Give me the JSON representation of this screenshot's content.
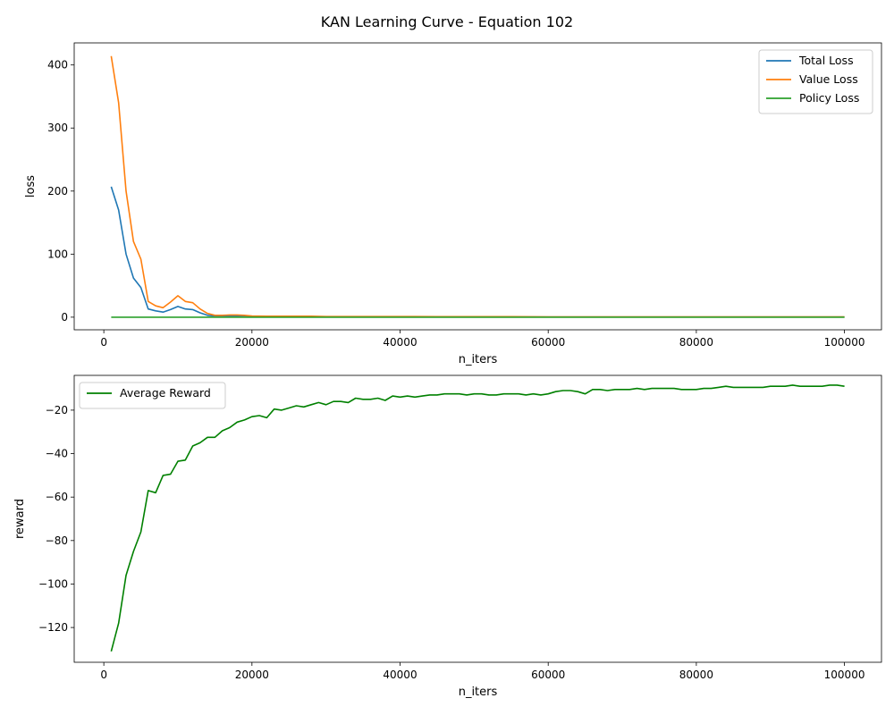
{
  "figure": {
    "title": "KAN Learning Curve - Equation 102"
  },
  "chart_data": [
    {
      "type": "line",
      "xlabel": "n_iters",
      "ylabel": "loss",
      "xlim": [
        -4000,
        105000
      ],
      "ylim": [
        -20,
        435
      ],
      "xticks": [
        0,
        20000,
        40000,
        60000,
        80000,
        100000
      ],
      "yticks": [
        0,
        100,
        200,
        300,
        400
      ],
      "legend": "top-right",
      "series": [
        {
          "name": "Total Loss",
          "color": "#1f77b4",
          "x": [
            1000,
            2000,
            3000,
            4000,
            5000,
            6000,
            7000,
            8000,
            9000,
            10000,
            11000,
            12000,
            13000,
            14000,
            15000,
            16000,
            17000,
            18000,
            19000,
            20000,
            22000,
            25000,
            28000,
            30000,
            35000,
            40000,
            42000,
            45000,
            50000,
            55000,
            60000,
            65000,
            70000,
            75000,
            80000,
            85000,
            90000,
            95000,
            100000
          ],
          "y": [
            207,
            170,
            100,
            62,
            47,
            13,
            10,
            8,
            12,
            17,
            13,
            12,
            7,
            3,
            2,
            2,
            2,
            2,
            2,
            1.5,
            1,
            1,
            1,
            0.5,
            0.5,
            0.5,
            0.5,
            0.5,
            0.5,
            0.5,
            0.3,
            0.3,
            0.3,
            0.3,
            0.3,
            0.3,
            0.3,
            0.3,
            0.3
          ]
        },
        {
          "name": "Value Loss",
          "color": "#ff7f0e",
          "x": [
            1000,
            2000,
            3000,
            4000,
            5000,
            6000,
            7000,
            8000,
            9000,
            10000,
            11000,
            12000,
            13000,
            14000,
            15000,
            16000,
            17000,
            18000,
            19000,
            20000,
            22000,
            25000,
            28000,
            30000,
            35000,
            40000,
            42000,
            45000,
            50000,
            55000,
            60000,
            65000,
            70000,
            75000,
            80000,
            85000,
            90000,
            95000,
            100000
          ],
          "y": [
            414,
            340,
            200,
            120,
            92,
            25,
            18,
            15,
            24,
            34,
            25,
            23,
            13,
            6,
            3,
            3,
            3.5,
            3.5,
            3,
            2,
            1.5,
            1.5,
            1.5,
            1,
            1,
            1,
            1,
            0.8,
            0.8,
            0.8,
            0.6,
            0.6,
            0.6,
            0.6,
            0.6,
            0.6,
            0.6,
            0.6,
            0.6
          ]
        },
        {
          "name": "Policy Loss",
          "color": "#2ca02c",
          "x": [
            1000,
            100000
          ],
          "y": [
            0,
            0
          ]
        }
      ]
    },
    {
      "type": "line",
      "xlabel": "n_iters",
      "ylabel": "reward",
      "xlim": [
        -4000,
        105000
      ],
      "ylim": [
        -136,
        -4
      ],
      "xticks": [
        0,
        20000,
        40000,
        60000,
        80000,
        100000
      ],
      "yticks": [
        -120,
        -100,
        -80,
        -60,
        -40,
        -20
      ],
      "legend": "top-left",
      "series": [
        {
          "name": "Average Reward",
          "color": "#008000",
          "x": [
            1000,
            2000,
            3000,
            4000,
            5000,
            6000,
            7000,
            8000,
            9000,
            10000,
            11000,
            12000,
            13000,
            14000,
            15000,
            16000,
            17000,
            18000,
            19000,
            20000,
            21000,
            22000,
            23000,
            24000,
            25000,
            26000,
            27000,
            28000,
            29000,
            30000,
            31000,
            32000,
            33000,
            34000,
            35000,
            36000,
            37000,
            38000,
            39000,
            40000,
            41000,
            42000,
            43000,
            44000,
            45000,
            46000,
            47000,
            48000,
            49000,
            50000,
            51000,
            52000,
            53000,
            54000,
            55000,
            56000,
            57000,
            58000,
            59000,
            60000,
            61000,
            62000,
            63000,
            64000,
            65000,
            66000,
            67000,
            68000,
            69000,
            70000,
            71000,
            72000,
            73000,
            74000,
            75000,
            76000,
            77000,
            78000,
            79000,
            80000,
            81000,
            82000,
            83000,
            84000,
            85000,
            86000,
            87000,
            88000,
            89000,
            90000,
            91000,
            92000,
            93000,
            94000,
            95000,
            96000,
            97000,
            98000,
            99000,
            100000
          ],
          "y": [
            -131,
            -118,
            -96,
            -85,
            -76,
            -57,
            -58,
            -50,
            -49.5,
            -43.5,
            -43,
            -36.5,
            -35,
            -32.5,
            -32.5,
            -29.5,
            -28,
            -25.5,
            -24.5,
            -23,
            -22.5,
            -23.5,
            -19.5,
            -20,
            -19,
            -18,
            -18.5,
            -17.5,
            -16.5,
            -17.5,
            -16,
            -16,
            -16.5,
            -14.5,
            -15,
            -15,
            -14.5,
            -15.5,
            -13.5,
            -14,
            -13.5,
            -14,
            -13.5,
            -13,
            -13,
            -12.5,
            -12.5,
            -12.5,
            -13,
            -12.5,
            -12.5,
            -13,
            -13,
            -12.5,
            -12.5,
            -12.5,
            -13,
            -12.5,
            -13,
            -12.5,
            -11.5,
            -11,
            -11,
            -11.5,
            -12.5,
            -10.5,
            -10.5,
            -11,
            -10.5,
            -10.5,
            -10.5,
            -10,
            -10.5,
            -10,
            -10,
            -10,
            -10,
            -10.5,
            -10.5,
            -10.5,
            -10,
            -10,
            -9.5,
            -9,
            -9.5,
            -9.5,
            -9.5,
            -9.5,
            -9.5,
            -9,
            -9,
            -9,
            -8.5,
            -9,
            -9,
            -9,
            -9,
            -8.5,
            -8.5,
            -9
          ]
        }
      ]
    }
  ]
}
